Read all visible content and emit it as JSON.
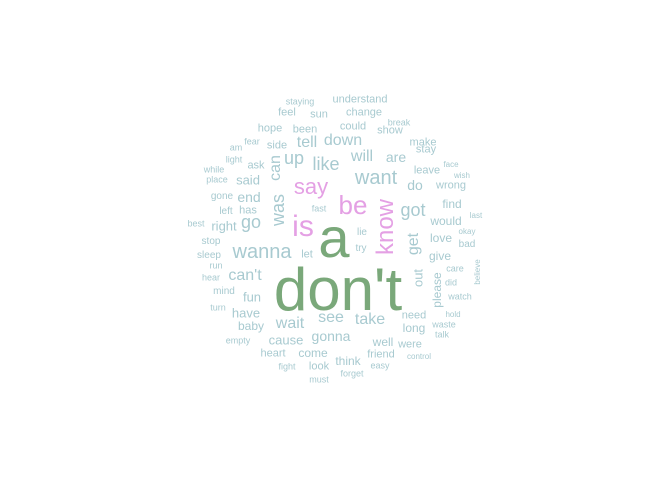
{
  "colors": {
    "background": "#ffffff",
    "tier_large": "#7aa87a",
    "tier_medium": "#e4a0e4",
    "tier_small": "#a8cad0"
  },
  "words": [
    {
      "text": "don't",
      "tier": "large",
      "vertical": false
    },
    {
      "text": "a",
      "tier": "large",
      "vertical": false
    },
    {
      "text": "is",
      "tier": "medium",
      "vertical": false
    },
    {
      "text": "be",
      "tier": "medium",
      "vertical": false
    },
    {
      "text": "say",
      "tier": "medium",
      "vertical": false
    },
    {
      "text": "know",
      "tier": "medium",
      "vertical": true
    },
    {
      "text": "want",
      "tier": "small",
      "vertical": false
    },
    {
      "text": "wanna",
      "tier": "small",
      "vertical": false
    },
    {
      "text": "was",
      "tier": "small",
      "vertical": true
    },
    {
      "text": "can",
      "tier": "small",
      "vertical": true
    },
    {
      "text": "go",
      "tier": "small",
      "vertical": false
    },
    {
      "text": "got",
      "tier": "small",
      "vertical": false
    },
    {
      "text": "get",
      "tier": "small",
      "vertical": true
    },
    {
      "text": "like",
      "tier": "small",
      "vertical": false
    },
    {
      "text": "up",
      "tier": "small",
      "vertical": false
    },
    {
      "text": "down",
      "tier": "small",
      "vertical": false
    },
    {
      "text": "will",
      "tier": "small",
      "vertical": false
    },
    {
      "text": "are",
      "tier": "small",
      "vertical": false
    },
    {
      "text": "do",
      "tier": "small",
      "vertical": false
    },
    {
      "text": "tell",
      "tier": "small",
      "vertical": false
    },
    {
      "text": "can't",
      "tier": "small",
      "vertical": false
    },
    {
      "text": "wait",
      "tier": "small",
      "vertical": false
    },
    {
      "text": "see",
      "tier": "small",
      "vertical": false
    },
    {
      "text": "take",
      "tier": "small",
      "vertical": false
    },
    {
      "text": "gonna",
      "tier": "small",
      "vertical": false
    },
    {
      "text": "out",
      "tier": "small",
      "vertical": true
    },
    {
      "text": "please",
      "tier": "small",
      "vertical": true
    },
    {
      "text": "end",
      "tier": "small",
      "vertical": false
    },
    {
      "text": "said",
      "tier": "small",
      "vertical": false
    },
    {
      "text": "right",
      "tier": "small",
      "vertical": false
    },
    {
      "text": "have",
      "tier": "small",
      "vertical": false
    },
    {
      "text": "fun",
      "tier": "small",
      "vertical": false
    },
    {
      "text": "baby",
      "tier": "small",
      "vertical": false
    },
    {
      "text": "cause",
      "tier": "small",
      "vertical": false
    },
    {
      "text": "come",
      "tier": "small",
      "vertical": false
    },
    {
      "text": "think",
      "tier": "small",
      "vertical": false
    },
    {
      "text": "well",
      "tier": "small",
      "vertical": false
    },
    {
      "text": "long",
      "tier": "small",
      "vertical": false
    },
    {
      "text": "need",
      "tier": "small",
      "vertical": false
    },
    {
      "text": "friend",
      "tier": "small",
      "vertical": false
    },
    {
      "text": "look",
      "tier": "small",
      "vertical": false
    },
    {
      "text": "heart",
      "tier": "small",
      "vertical": false
    },
    {
      "text": "were",
      "tier": "small",
      "vertical": false
    },
    {
      "text": "love",
      "tier": "small",
      "vertical": false
    },
    {
      "text": "give",
      "tier": "small",
      "vertical": false
    },
    {
      "text": "would",
      "tier": "small",
      "vertical": false
    },
    {
      "text": "find",
      "tier": "small",
      "vertical": false
    },
    {
      "text": "wrong",
      "tier": "small",
      "vertical": false
    },
    {
      "text": "leave",
      "tier": "small",
      "vertical": false
    },
    {
      "text": "stay",
      "tier": "small",
      "vertical": false
    },
    {
      "text": "make",
      "tier": "small",
      "vertical": false
    },
    {
      "text": "show",
      "tier": "small",
      "vertical": false
    },
    {
      "text": "break",
      "tier": "small",
      "vertical": false
    },
    {
      "text": "could",
      "tier": "small",
      "vertical": false
    },
    {
      "text": "change",
      "tier": "small",
      "vertical": false
    },
    {
      "text": "understand",
      "tier": "small",
      "vertical": false
    },
    {
      "text": "sun",
      "tier": "small",
      "vertical": false
    },
    {
      "text": "been",
      "tier": "small",
      "vertical": false
    },
    {
      "text": "hope",
      "tier": "small",
      "vertical": false
    },
    {
      "text": "feel",
      "tier": "small",
      "vertical": false
    },
    {
      "text": "staying",
      "tier": "small",
      "vertical": false
    },
    {
      "text": "side",
      "tier": "small",
      "vertical": false
    },
    {
      "text": "ask",
      "tier": "small",
      "vertical": false
    },
    {
      "text": "fear",
      "tier": "small",
      "vertical": false
    },
    {
      "text": "am",
      "tier": "small",
      "vertical": false
    },
    {
      "text": "light",
      "tier": "small",
      "vertical": false
    },
    {
      "text": "while",
      "tier": "small",
      "vertical": false
    },
    {
      "text": "place",
      "tier": "small",
      "vertical": false
    },
    {
      "text": "gone",
      "tier": "small",
      "vertical": false
    },
    {
      "text": "has",
      "tier": "small",
      "vertical": false
    },
    {
      "text": "left",
      "tier": "small",
      "vertical": false
    },
    {
      "text": "best",
      "tier": "small",
      "vertical": false
    },
    {
      "text": "stop",
      "tier": "small",
      "vertical": false
    },
    {
      "text": "sleep",
      "tier": "small",
      "vertical": false
    },
    {
      "text": "run",
      "tier": "small",
      "vertical": false
    },
    {
      "text": "hear",
      "tier": "small",
      "vertical": false
    },
    {
      "text": "mind",
      "tier": "small",
      "vertical": false
    },
    {
      "text": "turn",
      "tier": "small",
      "vertical": false
    },
    {
      "text": "empty",
      "tier": "small",
      "vertical": false
    },
    {
      "text": "fight",
      "tier": "small",
      "vertical": false
    },
    {
      "text": "must",
      "tier": "small",
      "vertical": false
    },
    {
      "text": "forget",
      "tier": "small",
      "vertical": false
    },
    {
      "text": "easy",
      "tier": "small",
      "vertical": false
    },
    {
      "text": "control",
      "tier": "small",
      "vertical": false
    },
    {
      "text": "talk",
      "tier": "small",
      "vertical": false
    },
    {
      "text": "waste",
      "tier": "small",
      "vertical": false
    },
    {
      "text": "hold",
      "tier": "small",
      "vertical": false
    },
    {
      "text": "watch",
      "tier": "small",
      "vertical": false
    },
    {
      "text": "did",
      "tier": "small",
      "vertical": false
    },
    {
      "text": "care",
      "tier": "small",
      "vertical": false
    },
    {
      "text": "believe",
      "tier": "small",
      "vertical": true
    },
    {
      "text": "bad",
      "tier": "small",
      "vertical": false
    },
    {
      "text": "okay",
      "tier": "small",
      "vertical": false
    },
    {
      "text": "last",
      "tier": "small",
      "vertical": false
    },
    {
      "text": "face",
      "tier": "small",
      "vertical": false
    },
    {
      "text": "wish",
      "tier": "small",
      "vertical": false
    },
    {
      "text": "fast",
      "tier": "small",
      "vertical": false
    },
    {
      "text": "lie",
      "tier": "small",
      "vertical": false
    },
    {
      "text": "try",
      "tier": "small",
      "vertical": false
    },
    {
      "text": "let",
      "tier": "small",
      "vertical": false
    }
  ]
}
